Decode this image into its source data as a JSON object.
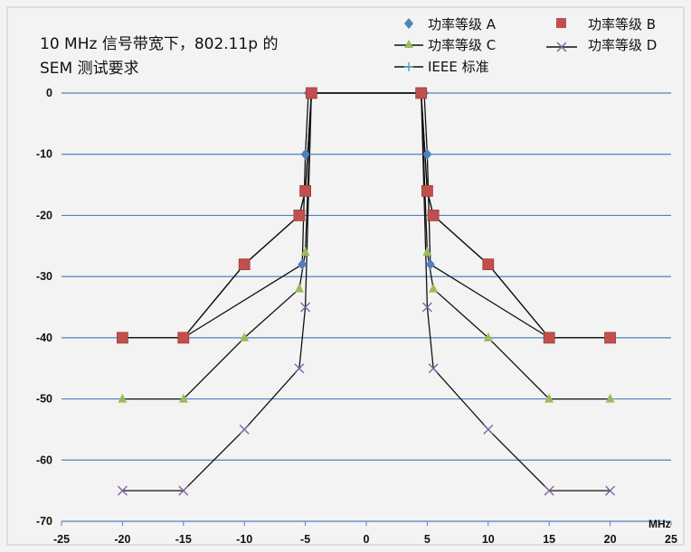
{
  "chart_data": {
    "type": "line",
    "title_line1": "10 MHz 信号带宽下，802.11p 的",
    "title_line2": "SEM 测试要求",
    "x_unit": "MHz",
    "xlim": [
      -25,
      25
    ],
    "ylim": [
      -70,
      0
    ],
    "x_ticks": [
      -25,
      -20,
      -15,
      -10,
      -5,
      0,
      5,
      10,
      15,
      20,
      25
    ],
    "y_ticks": [
      0,
      -10,
      -20,
      -30,
      -40,
      -50,
      -60,
      -70
    ],
    "grid": "horizontal",
    "colors": {
      "background": "#f3f3f3",
      "gridline": "#4f81bd",
      "axis": "#4f81bd",
      "line": "#111111"
    },
    "series": [
      {
        "name": "功率等级 A",
        "marker": "diamond",
        "color": "#4f81bd",
        "x": [
          -20,
          -15,
          -5.25,
          -5,
          -4.75,
          4.75,
          5,
          5.25,
          15,
          20
        ],
        "y": [
          -40,
          -40,
          -28,
          -10,
          0,
          0,
          -10,
          -28,
          -40,
          -40
        ]
      },
      {
        "name": "功率等级 B",
        "marker": "square",
        "color": "#c0504d",
        "x": [
          -20,
          -15,
          -10,
          -5.5,
          -5,
          -4.5,
          4.5,
          5,
          5.5,
          10,
          15,
          20
        ],
        "y": [
          -40,
          -40,
          -28,
          -20,
          -16,
          0,
          0,
          -16,
          -20,
          -28,
          -40,
          -40
        ]
      },
      {
        "name": "功率等级 C",
        "marker": "triangle",
        "color": "#9bbb59",
        "x": [
          -20,
          -15,
          -10,
          -5.5,
          -5,
          -4.5,
          4.5,
          5,
          5.5,
          10,
          15,
          20
        ],
        "y": [
          -50,
          -50,
          -40,
          -32,
          -26,
          0,
          0,
          -26,
          -32,
          -40,
          -50,
          -50
        ]
      },
      {
        "name": "功率等级 D",
        "marker": "x",
        "color": "#8064a2",
        "x": [
          -20,
          -15,
          -10,
          -5.5,
          -5,
          -4.5,
          4.5,
          5,
          5.5,
          10,
          15,
          20
        ],
        "y": [
          -65,
          -65,
          -55,
          -45,
          -35,
          0,
          0,
          -35,
          -45,
          -55,
          -65,
          -65
        ]
      },
      {
        "name": "IEEE 标准",
        "marker": "star",
        "color": "#4bacc6",
        "x": [
          -20,
          -15,
          -10,
          -5.5,
          -5,
          -4.5,
          4.5,
          5,
          5.5,
          10,
          15,
          20
        ],
        "y": [
          -40,
          -40,
          -28,
          -20,
          -16,
          0,
          0,
          -16,
          -20,
          -28,
          -40,
          -40
        ]
      }
    ]
  }
}
